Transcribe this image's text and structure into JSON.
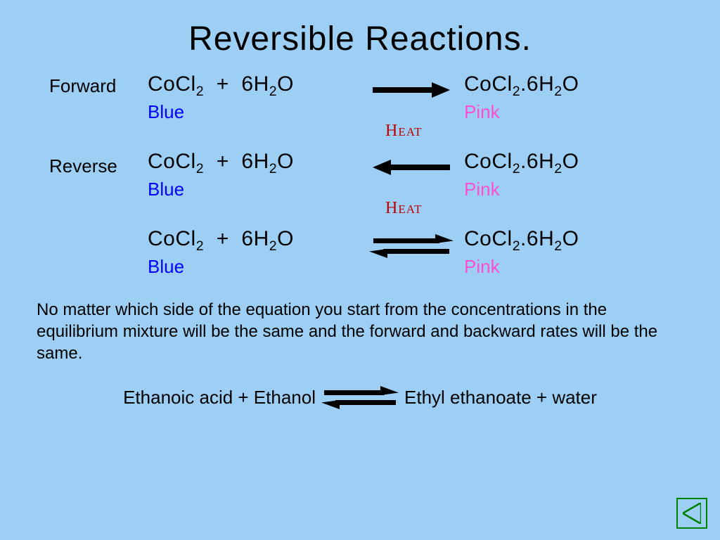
{
  "title": "Reversible Reactions.",
  "rows": {
    "forward": {
      "label": "Forward",
      "left_formula_html": "CoCl<span class='sub'>2</span>&nbsp;&nbsp;+&nbsp;&nbsp;6H<span class='sub'>2</span>O",
      "left_color": "Blue",
      "right_formula_html": "CoCl<span class='sub'>2</span>.6H<span class='sub'>2</span>O",
      "right_color": "Pink",
      "arrow": "forward",
      "heat_after": "Heat",
      "colors": {
        "left": "#0000ff",
        "right": "#ff4dd2"
      }
    },
    "reverse": {
      "label": "Reverse",
      "left_formula_html": "CoCl<span class='sub'>2</span>&nbsp;&nbsp;+&nbsp;&nbsp;6H<span class='sub'>2</span>O",
      "left_color": "Blue",
      "right_formula_html": "CoCl<span class='sub'>2</span>.6H<span class='sub'>2</span>O",
      "right_color": "Pink",
      "arrow": "reverse",
      "heat_after": "Heat",
      "colors": {
        "left": "#0000ff",
        "right": "#ff4dd2"
      }
    },
    "equilibrium": {
      "label": "",
      "left_formula_html": "CoCl<span class='sub'>2</span>&nbsp;&nbsp;+&nbsp;&nbsp;6H<span class='sub'>2</span>O",
      "left_color": "Blue",
      "right_formula_html": "CoCl<span class='sub'>2</span>.6H<span class='sub'>2</span>O",
      "right_color": "Pink",
      "arrow": "equilibrium",
      "colors": {
        "left": "#0000ff",
        "right": "#ff4dd2"
      }
    }
  },
  "body_text": "No matter which side of the equation you start from the concentrations in the equilibrium mixture will be the same and the forward and backward rates will be the same.",
  "bottom_equation": {
    "left": "Ethanoic acid + Ethanol",
    "right": "Ethyl ethanoate   +   water"
  },
  "styling": {
    "background": "#9dcff4",
    "text_color": "#000000",
    "heat_color": "#c00000",
    "arrow_color": "#000000",
    "nav_color": "#008000",
    "font": "Comic Sans MS",
    "title_fontsize": 48,
    "formula_fontsize": 30,
    "label_fontsize": 26,
    "body_fontsize": 24
  }
}
